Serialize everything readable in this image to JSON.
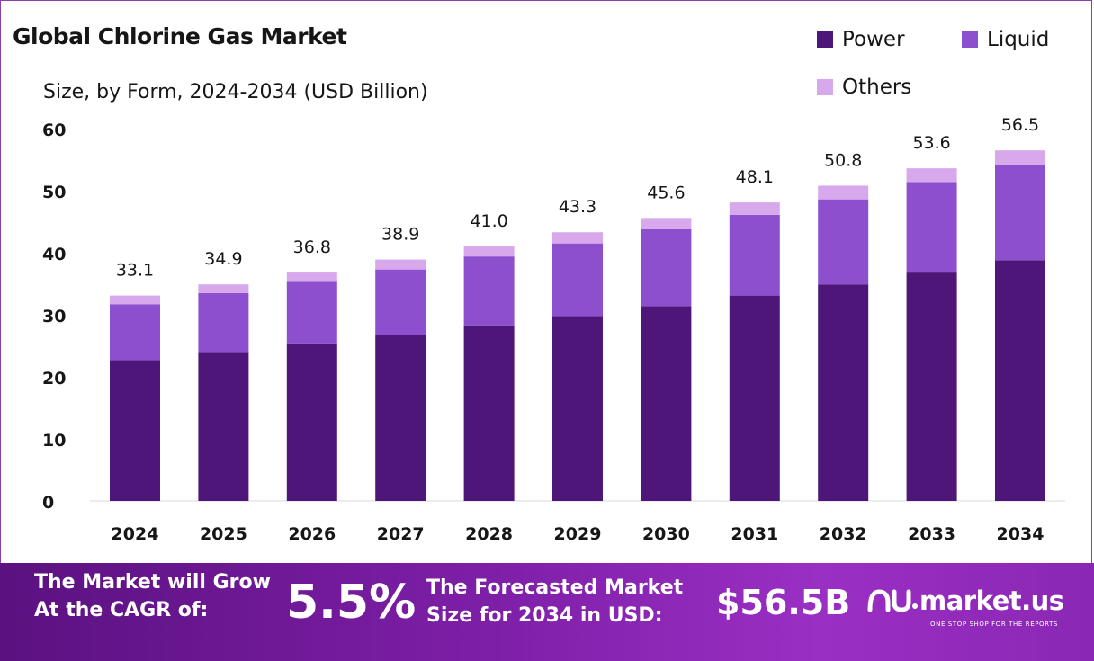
{
  "title": "Global Chlorine Gas Market",
  "subtitle": "Size, by Form, 2024-2034 (USD Billion)",
  "legend": [
    {
      "label": "Power",
      "color": "#4f167a"
    },
    {
      "label": "Liquid",
      "color": "#8e4fce"
    },
    {
      "label": "Others",
      "color": "#d7a8ec"
    }
  ],
  "chart_data": {
    "type": "bar",
    "stacked": true,
    "categories": [
      "2024",
      "2025",
      "2026",
      "2027",
      "2028",
      "2029",
      "2030",
      "2031",
      "2032",
      "2033",
      "2034"
    ],
    "series": [
      {
        "name": "Power",
        "color": "#4f167a",
        "values": [
          22.7,
          24.0,
          25.4,
          26.8,
          28.3,
          29.8,
          31.4,
          33.1,
          34.9,
          36.8,
          38.8
        ]
      },
      {
        "name": "Liquid",
        "color": "#8e4fce",
        "values": [
          9.0,
          9.5,
          9.9,
          10.5,
          11.1,
          11.7,
          12.4,
          13.0,
          13.7,
          14.6,
          15.4
        ]
      },
      {
        "name": "Others",
        "color": "#d7a8ec",
        "values": [
          1.4,
          1.4,
          1.5,
          1.6,
          1.6,
          1.8,
          1.8,
          2.0,
          2.2,
          2.2,
          2.3
        ]
      }
    ],
    "totals": [
      "33.1",
      "34.9",
      "36.8",
      "38.9",
      "41.0",
      "43.3",
      "45.6",
      "48.1",
      "50.8",
      "53.6",
      "56.5"
    ],
    "ylim": [
      0,
      60
    ],
    "yticks": [
      "0",
      "10",
      "20",
      "30",
      "40",
      "50",
      "60"
    ],
    "grid": false
  },
  "footer": {
    "cagr_line1": "The Market will Grow",
    "cagr_line2": "At the CAGR of:",
    "cagr_value": "5.5%",
    "forecast_line1": "The Forecasted Market",
    "forecast_line2": "Size for 2034 in USD:",
    "forecast_value": "$56.5B",
    "brand_name": "market.us",
    "brand_tagline": "ONE STOP SHOP FOR THE REPORTS"
  }
}
